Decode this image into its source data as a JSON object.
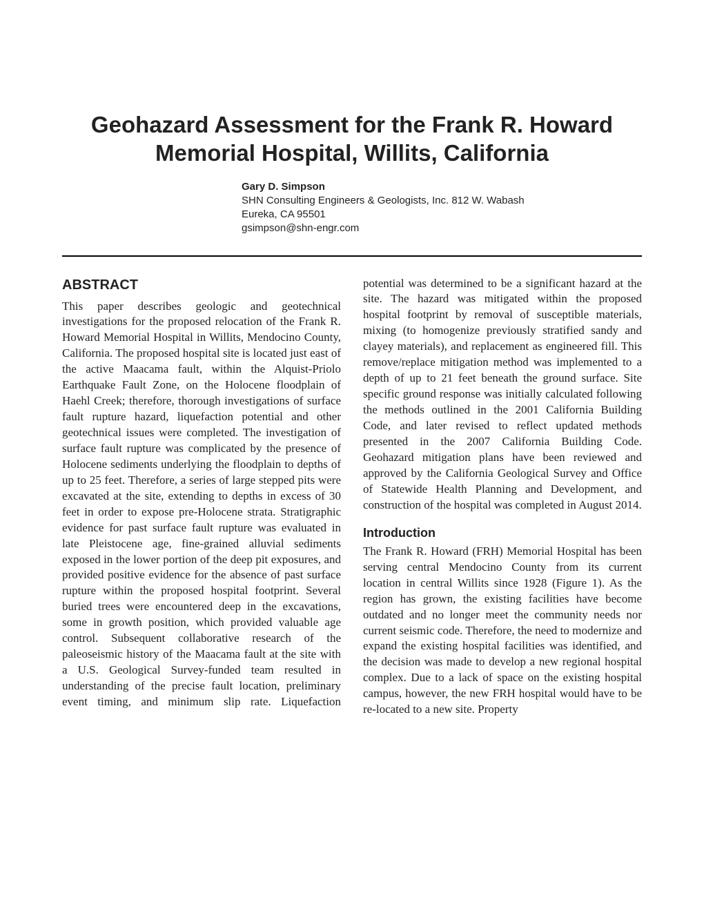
{
  "title": "Geohazard Assessment for the Frank R. Howard Memorial Hospital, Willits, California",
  "author": {
    "name": "Gary D. Simpson",
    "affiliation": "SHN Consulting Engineers & Geologists, Inc. 812 W. Wabash",
    "city": "Eureka, CA 95501",
    "email": "gsimpson@shn-engr.com"
  },
  "sections": {
    "abstract": {
      "heading": "ABSTRACT",
      "body": "This paper describes geologic and geotechnical investigations for the proposed relocation of the Frank R. Howard Memorial Hospital in Willits, Mendocino County, California. The proposed hospital site is located just east of the active Maacama fault, within the Alquist-Priolo Earthquake Fault Zone, on the Holocene floodplain of Haehl Creek; therefore, thorough investigations of surface fault rupture hazard, liquefaction potential and other geotechnical issues were completed. The investigation of surface fault rupture was complicated by the presence of Holocene sediments underlying the floodplain to depths of up to 25 feet. Therefore, a series of large stepped pits were excavated at the site, extending to depths in excess of 30 feet in order to expose pre-Holocene strata. Stratigraphic evidence for past surface fault rupture was evaluated in late Pleistocene age, fine-grained alluvial sediments exposed in the lower portion of the deep pit exposures, and provided positive evidence for the absence of past surface rupture within the proposed hospital footprint. Several buried trees were encountered deep in the excavations, some in growth position, which provided valuable age control. Subsequent collaborative research of the paleoseismic history of the Maacama fault at the site with a U.S. Geological Survey-funded team resulted in understanding of the precise fault location, preliminary event timing, and minimum slip rate. Liquefaction potential was determined to be a significant hazard at the site. The hazard was mitigated within the proposed hospital footprint by removal of susceptible materials, mixing (to homogenize previously stratified sandy and clayey materials), and replacement as engineered fill. This remove/replace mitigation method was implemented to a depth of up to 21 feet beneath the ground surface. Site specific ground response was initially calculated following the methods outlined in the 2001 California Building Code, and later revised to reflect updated methods presented in the 2007 California Building Code. Geohazard mitigation plans have been reviewed and approved by the California Geological Survey and Office of Statewide Health Planning and Development, and construction of the hospital was completed in August 2014."
    },
    "introduction": {
      "heading": "Introduction",
      "body": "The Frank R. Howard (FRH) Memorial Hospital has been serving central Mendocino County from its current location in central Willits since 1928 (Figure 1). As the region has grown, the existing facilities have become outdated and no longer meet the community needs nor current seismic code. Therefore, the need to modernize and expand the existing hospital facilities was identified, and the decision was made to develop a new regional hospital complex. Due to a lack of space on the existing hospital campus, however, the new FRH hospital would have to be re-located to a new site. Property"
    }
  }
}
